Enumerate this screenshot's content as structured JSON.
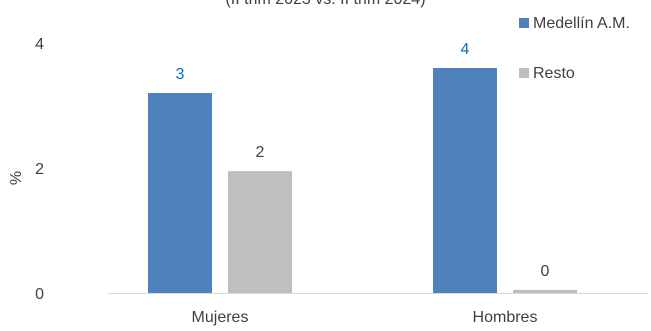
{
  "chart_data": {
    "type": "bar",
    "subtitle": "(II trim 2023 vs. II trim 2024)",
    "ylabel": "%",
    "xlabel": "",
    "ylim": [
      0,
      4
    ],
    "y_ticks": [
      "0",
      "2",
      "4"
    ],
    "categories": [
      "Mujeres",
      "Hombres"
    ],
    "grid": false,
    "legend_position": "top-right",
    "series": [
      {
        "name": "Medellín A.M.",
        "values": [
          3.2,
          3.6
        ],
        "labels": [
          "3",
          "4"
        ],
        "color": "#4f81bd",
        "label_color": "#0070c0"
      },
      {
        "name": "Resto",
        "values": [
          1.95,
          0.05
        ],
        "labels": [
          "2",
          "0"
        ],
        "color": "#bfbfbf",
        "label_color": "#404040"
      }
    ]
  }
}
